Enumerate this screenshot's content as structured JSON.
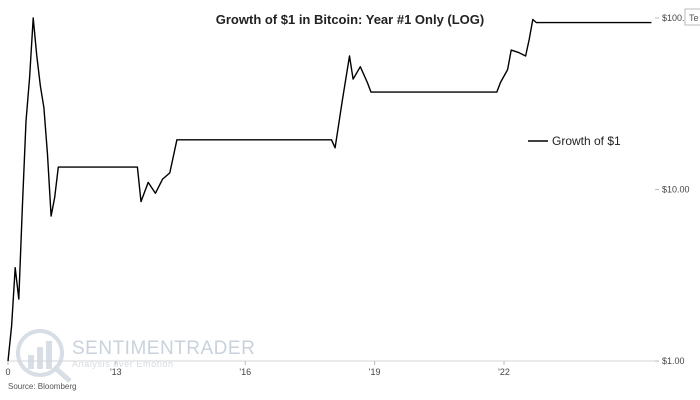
{
  "chart_data": {
    "type": "line",
    "title": "Growth of $1 in Bitcoin: Year #1 Only (LOG)",
    "xlabel": "",
    "ylabel": "",
    "y_scale": "log",
    "ylim": [
      1,
      100
    ],
    "xlim": [
      "2010-07",
      "2025-07"
    ],
    "x_ticks": [
      {
        "label": "0",
        "date": "2010-07"
      },
      {
        "label": "'13",
        "date": "2013-01"
      },
      {
        "label": "'16",
        "date": "2016-01"
      },
      {
        "label": "'19",
        "date": "2019-01"
      },
      {
        "label": "'22",
        "date": "2022-01"
      }
    ],
    "y_ticks": [
      {
        "label": "$1.00",
        "value": 1
      },
      {
        "label": "$10.00",
        "value": 10
      },
      {
        "label": "$100.0",
        "value": 100
      }
    ],
    "grid": false,
    "legend_position": "right",
    "series": [
      {
        "name": "Growth of $1",
        "color": "#000000",
        "points": [
          [
            "2010-07",
            1.0
          ],
          [
            "2010-08",
            1.6
          ],
          [
            "2010-09",
            3.5
          ],
          [
            "2010-10",
            2.3
          ],
          [
            "2010-11",
            8.0
          ],
          [
            "2010-12",
            25.0
          ],
          [
            "2011-01",
            45.0
          ],
          [
            "2011-02",
            100.0
          ],
          [
            "2011-03",
            60.0
          ],
          [
            "2011-04",
            40.0
          ],
          [
            "2011-05",
            30.0
          ],
          [
            "2011-06",
            16.0
          ],
          [
            "2011-07",
            7.0
          ],
          [
            "2011-08",
            9.0
          ],
          [
            "2011-09",
            13.5
          ],
          [
            "2013-07",
            13.5
          ],
          [
            "2013-08",
            8.5
          ],
          [
            "2013-10",
            11.0
          ],
          [
            "2013-12",
            9.5
          ],
          [
            "2014-02",
            11.5
          ],
          [
            "2014-04",
            12.5
          ],
          [
            "2014-06",
            19.5
          ],
          [
            "2018-01",
            19.5
          ],
          [
            "2018-02",
            17.5
          ],
          [
            "2018-04",
            33.0
          ],
          [
            "2018-06",
            60.0
          ],
          [
            "2018-07",
            44.0
          ],
          [
            "2018-09",
            52.0
          ],
          [
            "2018-11",
            42.0
          ],
          [
            "2018-12",
            37.0
          ],
          [
            "2021-11",
            37.0
          ],
          [
            "2021-12",
            42.0
          ],
          [
            "2022-02",
            50.0
          ],
          [
            "2022-03",
            65.0
          ],
          [
            "2022-05",
            63.0
          ],
          [
            "2022-07",
            60.0
          ],
          [
            "2022-08",
            75.0
          ],
          [
            "2022-09",
            98.0
          ],
          [
            "2022-10",
            94.0
          ],
          [
            "2025-06",
            94.0
          ]
        ]
      }
    ],
    "annotations": {
      "source": "Source: Bloomberg",
      "y_axis_clip_label": "Te"
    },
    "watermark": {
      "brand": "SENTIMENTRADER",
      "tagline": "Analysis over Emotion",
      "color": "#c9d2dc"
    }
  }
}
